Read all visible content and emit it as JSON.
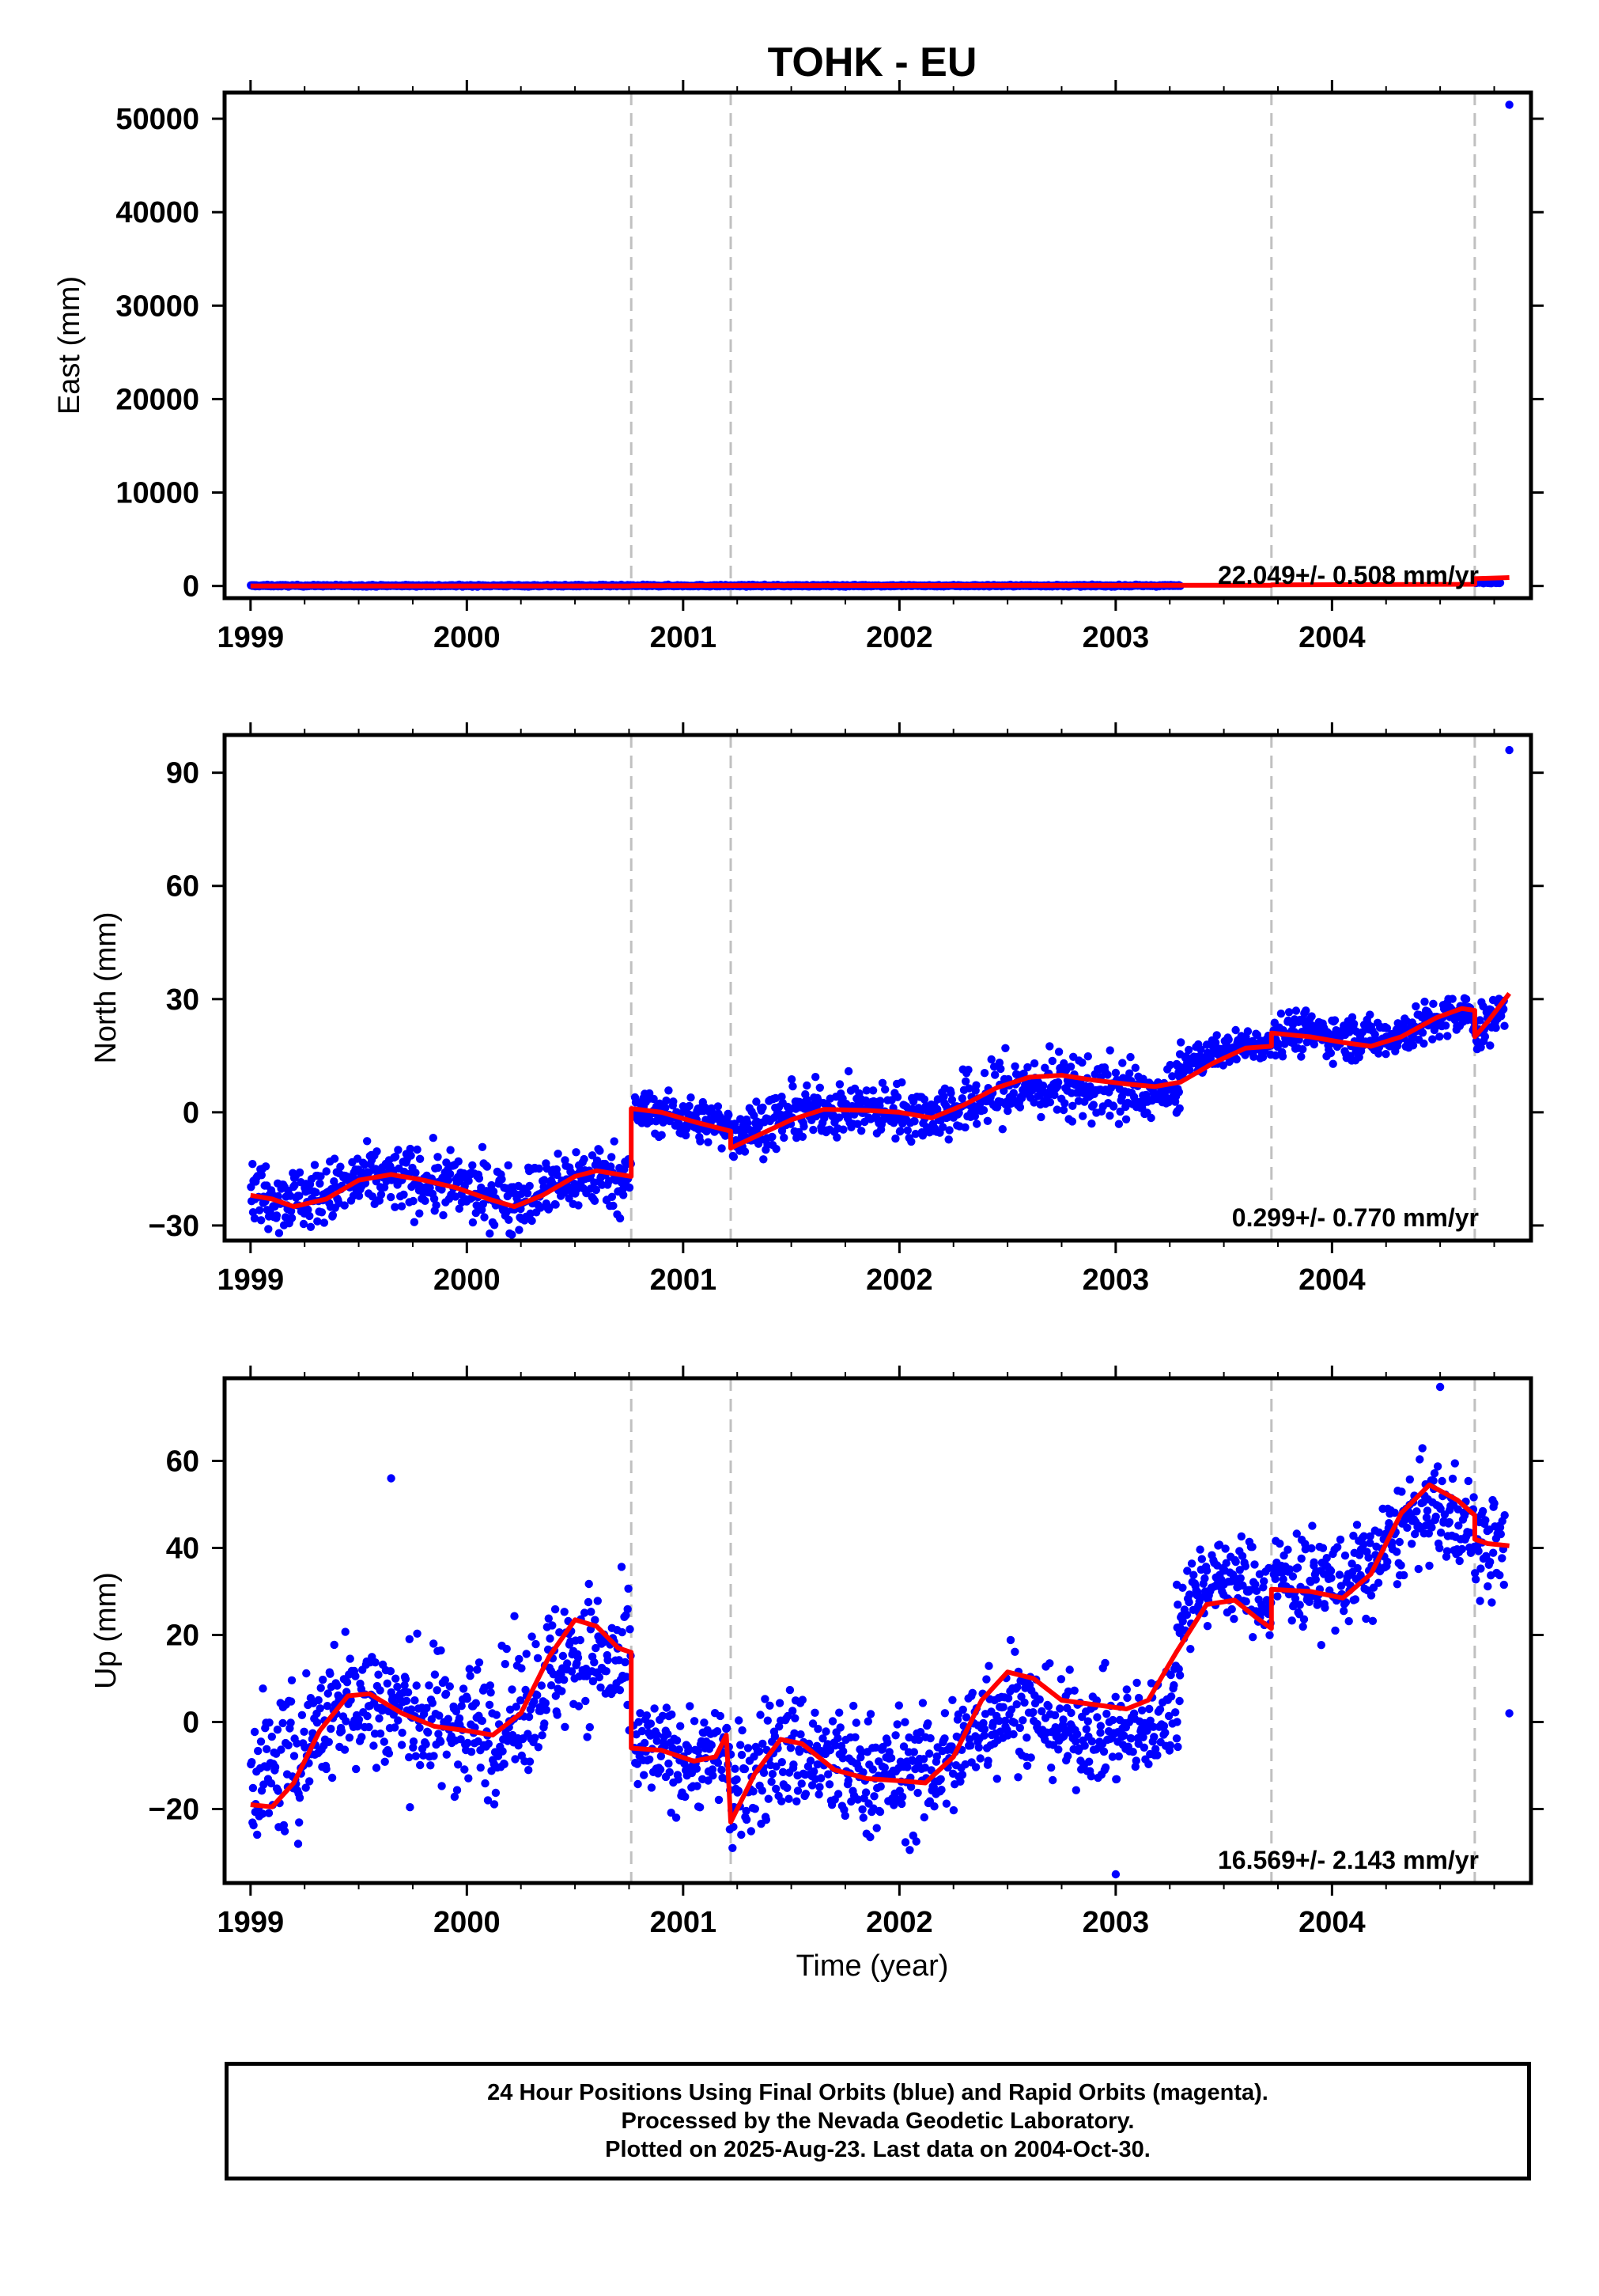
{
  "title": "TOHK - EU",
  "xlabel": "Time (year)",
  "caption": [
    "24 Hour Positions Using Final Orbits (blue) and Rapid Orbits (magenta).",
    "Processed by the Nevada Geodetic Laboratory.",
    "Plotted on 2025-Aug-23. Last data on 2004-Oct-30."
  ],
  "colors": {
    "final_points": "#0000ff",
    "model": "#ff0000",
    "breaks": "#c0c0c0"
  },
  "chart_data": [
    {
      "type": "scatter",
      "component": "East",
      "ylabel": "East (mm)",
      "rate_label": "22.049+/- 0.508 mm/yr",
      "xlim": [
        1998.88,
        2004.92
      ],
      "ylim": [
        -1300,
        52800
      ],
      "yticks": [
        0,
        10000,
        20000,
        30000,
        40000,
        50000
      ],
      "ytick_labels": [
        "0",
        "10000",
        "20000",
        "30000",
        "40000",
        "50000"
      ],
      "xticks": [
        1999,
        2000,
        2001,
        2002,
        2003,
        2004
      ],
      "xtick_labels": [
        "1999",
        "2000",
        "2001",
        "2002",
        "2003",
        "2004"
      ],
      "breaks": [
        2000.76,
        2001.22,
        2003.72,
        2004.66
      ],
      "segments": [
        {
          "from": 1999.0,
          "to": 2003.3,
          "base": 30,
          "spread": 60
        },
        {
          "from": 2004.66,
          "to": 2004.78,
          "base": 420,
          "spread": 80
        }
      ],
      "outliers": [
        {
          "x": 2004.82,
          "y": 51500
        }
      ],
      "model": [
        [
          1999.0,
          0
        ],
        [
          2000.76,
          5
        ],
        [
          2000.76,
          40
        ],
        [
          2003.72,
          80
        ],
        [
          2003.72,
          120
        ],
        [
          2004.66,
          180
        ],
        [
          2004.66,
          780
        ],
        [
          2004.82,
          900
        ]
      ]
    },
    {
      "type": "scatter",
      "component": "North",
      "ylabel": "North (mm)",
      "rate_label": "0.299+/- 0.770 mm/yr",
      "xlim": [
        1998.88,
        2004.92
      ],
      "ylim": [
        -34,
        100
      ],
      "yticks": [
        -30,
        0,
        30,
        60,
        90
      ],
      "ytick_labels": [
        "−30",
        "0",
        "30",
        "60",
        "90"
      ],
      "xticks": [
        1999,
        2000,
        2001,
        2002,
        2003,
        2004
      ],
      "xtick_labels": [
        "1999",
        "2000",
        "2001",
        "2002",
        "2003",
        "2004"
      ],
      "breaks": [
        2000.76,
        2001.22,
        2003.72,
        2004.66
      ],
      "segments": [
        {
          "from": 1999.0,
          "to": 2000.76,
          "base": -19,
          "spread": 6
        },
        {
          "from": 2000.77,
          "to": 2001.22,
          "base": -1,
          "spread": 4
        },
        {
          "from": 2001.22,
          "to": 2002.2,
          "base": 1,
          "spread": 5
        },
        {
          "from": 2002.2,
          "to": 2003.1,
          "base": 2,
          "spread": 6
        },
        {
          "from": 2003.1,
          "to": 2003.3,
          "base": 0,
          "spread": 4
        },
        {
          "from": 2003.28,
          "to": 2003.72,
          "base": 20,
          "spread": 3
        },
        {
          "from": 2003.73,
          "to": 2004.8,
          "base": 23,
          "spread": 4
        }
      ],
      "outliers": [
        {
          "x": 2004.82,
          "y": 96
        },
        {
          "x": 2002.49,
          "y": 17
        }
      ],
      "model": [
        [
          1999.0,
          -22
        ],
        [
          1999.1,
          -23
        ],
        [
          1999.2,
          -25
        ],
        [
          1999.35,
          -23
        ],
        [
          1999.5,
          -18
        ],
        [
          1999.65,
          -16.5
        ],
        [
          1999.8,
          -18
        ],
        [
          1999.95,
          -20
        ],
        [
          2000.1,
          -23
        ],
        [
          2000.22,
          -25
        ],
        [
          2000.35,
          -22
        ],
        [
          2000.5,
          -17
        ],
        [
          2000.6,
          -15.5
        ],
        [
          2000.76,
          -17
        ],
        [
          2000.76,
          1
        ],
        [
          2000.9,
          0
        ],
        [
          2001.05,
          -2.5
        ],
        [
          2001.22,
          -5
        ],
        [
          2001.22,
          -9.5
        ],
        [
          2001.35,
          -6
        ],
        [
          2001.5,
          -2
        ],
        [
          2001.65,
          0.8
        ],
        [
          2001.85,
          0.5
        ],
        [
          2002.0,
          0
        ],
        [
          2002.15,
          -1.5
        ],
        [
          2002.3,
          2
        ],
        [
          2002.45,
          6.5
        ],
        [
          2002.6,
          9.3
        ],
        [
          2002.75,
          9.8
        ],
        [
          2002.9,
          8.5
        ],
        [
          2003.05,
          7.5
        ],
        [
          2003.18,
          6.8
        ],
        [
          2003.3,
          8
        ],
        [
          2003.45,
          13
        ],
        [
          2003.6,
          17
        ],
        [
          2003.72,
          17.5
        ],
        [
          2003.72,
          21
        ],
        [
          2003.9,
          20
        ],
        [
          2004.05,
          18.5
        ],
        [
          2004.18,
          17.5
        ],
        [
          2004.32,
          20
        ],
        [
          2004.48,
          25
        ],
        [
          2004.6,
          27.5
        ],
        [
          2004.66,
          27
        ],
        [
          2004.66,
          20
        ],
        [
          2004.72,
          24
        ],
        [
          2004.82,
          31.5
        ]
      ]
    },
    {
      "type": "scatter",
      "component": "Up",
      "ylabel": "Up (mm)",
      "rate_label": "16.569+/- 2.143 mm/yr",
      "xlim": [
        1998.88,
        2004.92
      ],
      "ylim": [
        -37,
        79
      ],
      "yticks": [
        -20,
        0,
        20,
        40,
        60
      ],
      "ytick_labels": [
        "−20",
        "0",
        "20",
        "40",
        "60"
      ],
      "xticks": [
        1999,
        2000,
        2001,
        2002,
        2003,
        2004
      ],
      "xtick_labels": [
        "1999",
        "2000",
        "2001",
        "2002",
        "2003",
        "2004"
      ],
      "breaks": [
        2000.76,
        2001.22,
        2003.72,
        2004.66
      ],
      "segments": [
        {
          "from": 1999.0,
          "to": 2000.76,
          "base": 3,
          "spread": 11
        },
        {
          "from": 2000.77,
          "to": 2001.22,
          "base": -8,
          "spread": 8
        },
        {
          "from": 2001.22,
          "to": 2002.0,
          "base": -10,
          "spread": 10
        },
        {
          "from": 2002.0,
          "to": 2002.6,
          "base": -8,
          "spread": 10
        },
        {
          "from": 2002.6,
          "to": 2003.3,
          "base": -14,
          "spread": 8
        },
        {
          "from": 2003.28,
          "to": 2003.72,
          "base": 43,
          "spread": 7
        },
        {
          "from": 2003.73,
          "to": 2004.8,
          "base": 38,
          "spread": 8
        }
      ],
      "outliers": [
        {
          "x": 1999.65,
          "y": 56
        },
        {
          "x": 2004.5,
          "y": 77
        },
        {
          "x": 2004.82,
          "y": 2
        },
        {
          "x": 2003.0,
          "y": -35
        },
        {
          "x": 1999.22,
          "y": -28
        }
      ],
      "model": [
        [
          1999.0,
          -19
        ],
        [
          1999.1,
          -19.5
        ],
        [
          1999.2,
          -14
        ],
        [
          1999.32,
          -2
        ],
        [
          1999.45,
          6
        ],
        [
          1999.55,
          6.5
        ],
        [
          1999.7,
          2
        ],
        [
          1999.85,
          -1
        ],
        [
          2000.0,
          -2
        ],
        [
          2000.12,
          -3
        ],
        [
          2000.25,
          2
        ],
        [
          2000.38,
          15
        ],
        [
          2000.5,
          23.5
        ],
        [
          2000.6,
          22
        ],
        [
          2000.7,
          17
        ],
        [
          2000.76,
          16
        ],
        [
          2000.76,
          -6
        ],
        [
          2000.9,
          -6.5
        ],
        [
          2001.05,
          -9
        ],
        [
          2001.15,
          -8
        ],
        [
          2001.2,
          -3
        ],
        [
          2001.22,
          -23
        ],
        [
          2001.33,
          -12
        ],
        [
          2001.45,
          -4
        ],
        [
          2001.55,
          -5
        ],
        [
          2001.7,
          -11
        ],
        [
          2001.85,
          -13
        ],
        [
          2002.0,
          -13.5
        ],
        [
          2002.12,
          -14
        ],
        [
          2002.25,
          -8
        ],
        [
          2002.38,
          5
        ],
        [
          2002.5,
          11.5
        ],
        [
          2002.62,
          10
        ],
        [
          2002.75,
          5
        ],
        [
          2002.9,
          4
        ],
        [
          2003.05,
          3
        ],
        [
          2003.15,
          5
        ],
        [
          2003.28,
          16
        ],
        [
          2003.42,
          27
        ],
        [
          2003.55,
          28
        ],
        [
          2003.65,
          24
        ],
        [
          2003.72,
          21.5
        ],
        [
          2003.72,
          30.5
        ],
        [
          2003.9,
          30
        ],
        [
          2004.05,
          28.5
        ],
        [
          2004.18,
          34
        ],
        [
          2004.32,
          48
        ],
        [
          2004.45,
          54.5
        ],
        [
          2004.58,
          51
        ],
        [
          2004.66,
          47.5
        ],
        [
          2004.66,
          42
        ],
        [
          2004.72,
          41
        ],
        [
          2004.82,
          40.5
        ]
      ]
    }
  ]
}
